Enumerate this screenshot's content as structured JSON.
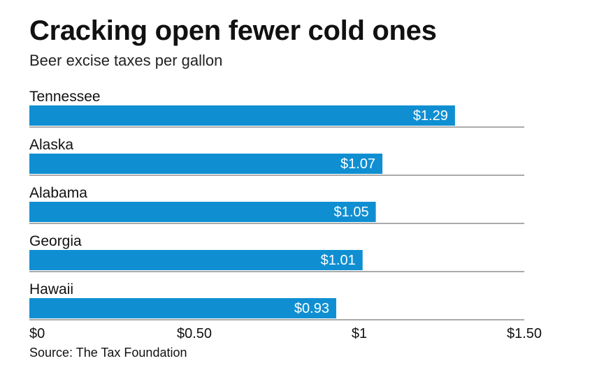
{
  "title": "Cracking open fewer cold ones",
  "subtitle": "Beer excise taxes per gallon",
  "source": "Source: The Tax Foundation",
  "colors": {
    "bar": "#0f8fd2",
    "label": "#ffffff",
    "rule": "#555555",
    "text": "#111111"
  },
  "chart_data": {
    "type": "bar",
    "orientation": "horizontal",
    "categories": [
      "Tennessee",
      "Alaska",
      "Alabama",
      "Georgia",
      "Hawaii"
    ],
    "values": [
      1.29,
      1.07,
      1.05,
      1.01,
      0.93
    ],
    "value_labels": [
      "$1.29",
      "$1.07",
      "$1.05",
      "$1.01",
      "$0.93"
    ],
    "xlim": [
      0,
      1.5
    ],
    "xticks": [
      0,
      0.5,
      1,
      1.5
    ],
    "xtick_labels": [
      "$0",
      "$0.50",
      "$1",
      "$1.50"
    ],
    "grid": false
  }
}
